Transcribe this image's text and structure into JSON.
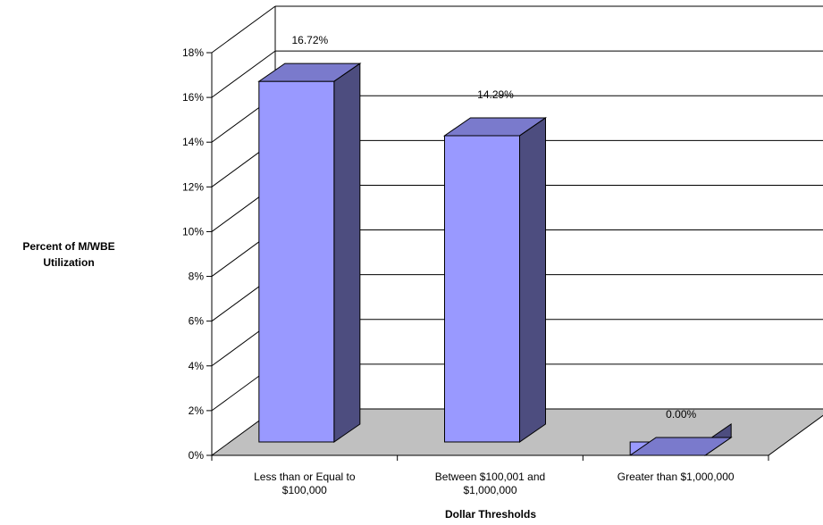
{
  "chart_data": {
    "type": "bar",
    "title": "",
    "xlabel": "Dollar Thresholds",
    "ylabel_lines": [
      "Percent of M/WBE",
      "Utilization"
    ],
    "categories": [
      [
        "Less than or Equal to",
        "$100,000"
      ],
      [
        "Between $100,001 and",
        "$1,000,000"
      ],
      [
        "Greater than $1,000,000"
      ]
    ],
    "values": [
      16.72,
      14.29,
      0.0
    ],
    "data_labels": [
      "16.72%",
      "14.29%",
      "0.00%"
    ],
    "ylim": [
      0,
      18
    ],
    "yticks": [
      "0%",
      "2%",
      "4%",
      "6%",
      "8%",
      "10%",
      "12%",
      "14%",
      "16%",
      "18%"
    ],
    "grid": true,
    "three_d": true,
    "colors": {
      "bar_front": "#9999FF",
      "bar_side": "#4D4D7F",
      "bar_top": "#7A7ACC",
      "floor": "#C0C0C0",
      "axis": "#000000"
    }
  }
}
